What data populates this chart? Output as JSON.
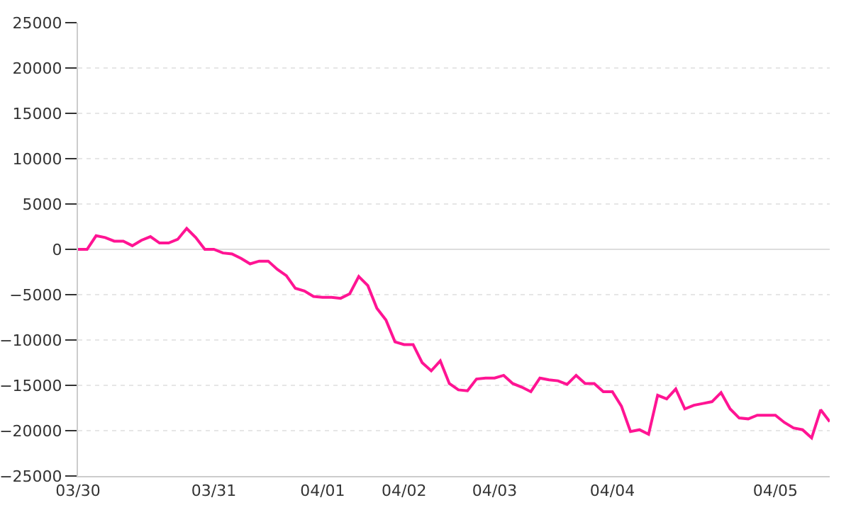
{
  "chart_data": {
    "type": "line",
    "categories": [
      "03/30",
      null,
      null,
      null,
      null,
      null,
      null,
      null,
      null,
      null,
      null,
      null,
      null,
      null,
      null,
      "03/31",
      null,
      null,
      null,
      null,
      null,
      null,
      null,
      null,
      null,
      null,
      null,
      "04/01",
      null,
      null,
      null,
      null,
      null,
      null,
      null,
      null,
      "04/02",
      null,
      null,
      null,
      null,
      null,
      null,
      null,
      null,
      null,
      "04/03",
      null,
      null,
      null,
      null,
      null,
      null,
      null,
      null,
      null,
      null,
      null,
      null,
      "04/04",
      null,
      null,
      null,
      null,
      null,
      null,
      null,
      null,
      null,
      null,
      null,
      null,
      null,
      null,
      null,
      null,
      null,
      "04/05",
      null,
      null,
      null,
      null,
      null,
      null
    ],
    "series": [
      {
        "color": "#ff1493",
        "values": [
          0,
          0,
          1500,
          1300,
          900,
          900,
          400,
          1000,
          1400,
          700,
          700,
          1100,
          2300,
          1300,
          0,
          0,
          -400,
          -500,
          -1000,
          -1600,
          -1300,
          -1300,
          -2200,
          -2900,
          -4300,
          -4600,
          -5200,
          -5300,
          -5300,
          -5400,
          -4900,
          -3000,
          -4000,
          -6500,
          -7800,
          -10200,
          -10500,
          -10500,
          -12500,
          -13400,
          -12300,
          -14800,
          -15500,
          -15600,
          -14300,
          -14200,
          -14200,
          -13900,
          -14800,
          -15200,
          -15700,
          -14200,
          -14400,
          -14500,
          -14900,
          -13900,
          -14800,
          -14800,
          -15700,
          -15700,
          -17300,
          -20100,
          -19900,
          -20400,
          -16100,
          -16500,
          -15400,
          -17600,
          -17200,
          -17000,
          -16800,
          -15800,
          -17600,
          -18600,
          -18700,
          -18300,
          -18300,
          -18300,
          -19100,
          -19700,
          -19900,
          -20800,
          -17700,
          -19000
        ]
      }
    ],
    "ylim": [
      -25000,
      25000
    ],
    "yticks": [
      -25000,
      -20000,
      -15000,
      -10000,
      -5000,
      0,
      5000,
      10000,
      15000,
      20000,
      25000
    ],
    "grid": "y",
    "marker": "none",
    "line_style": "solid"
  }
}
